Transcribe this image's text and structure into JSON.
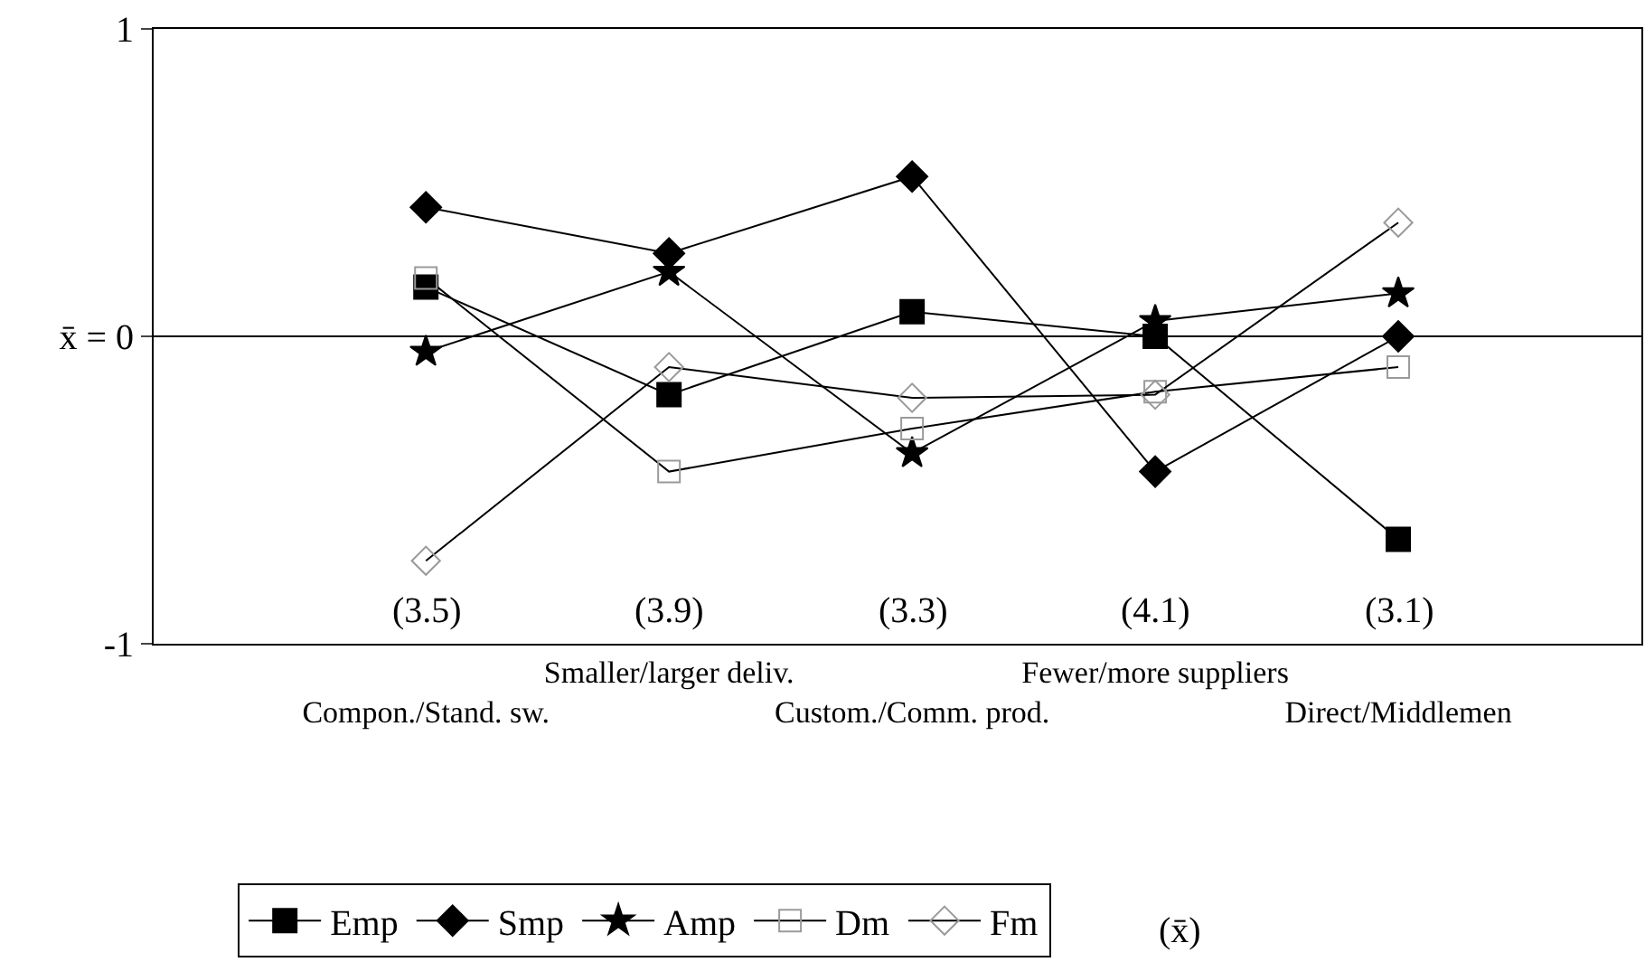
{
  "chart_data": {
    "type": "line",
    "categories": [
      "Compon./Stand. sw.",
      "Smaller/larger deliv.",
      "Custom./Comm. prod.",
      "Fewer/more suppliers",
      "Direct/Middlemen"
    ],
    "series": [
      {
        "name": "Emp",
        "color": "#000000",
        "marker": "square",
        "values": [
          0.16,
          -0.19,
          0.08,
          0.0,
          -0.66
        ]
      },
      {
        "name": "Smp",
        "color": "#000000",
        "marker": "diamond",
        "values": [
          0.42,
          0.27,
          0.52,
          -0.44,
          0.0
        ]
      },
      {
        "name": "Amp",
        "color": "#000000",
        "marker": "star",
        "values": [
          -0.05,
          0.21,
          -0.38,
          0.05,
          0.14
        ]
      },
      {
        "name": "Dm",
        "color": "#9a9a9a",
        "marker": "square",
        "values": [
          0.19,
          -0.44,
          -0.3,
          -0.18,
          -0.1
        ]
      },
      {
        "name": "Fm",
        "color": "#9a9a9a",
        "marker": "diamond",
        "values": [
          -0.73,
          -0.1,
          -0.2,
          -0.19,
          0.37
        ]
      }
    ],
    "ylim": [
      -1,
      1
    ],
    "yticks": [
      -1,
      {
        "value": 0,
        "label": "x̄ = 0"
      },
      1
    ],
    "ref_lines": [
      {
        "axis": "y",
        "value": 0,
        "color": "#000000"
      }
    ],
    "annotations": [
      "(3.5)",
      "(3.9)",
      "(3.3)",
      "(4.1)",
      "(3.1)",
      "(x̄)"
    ],
    "grid": false,
    "legend": "bottom",
    "line_style": "solid"
  }
}
